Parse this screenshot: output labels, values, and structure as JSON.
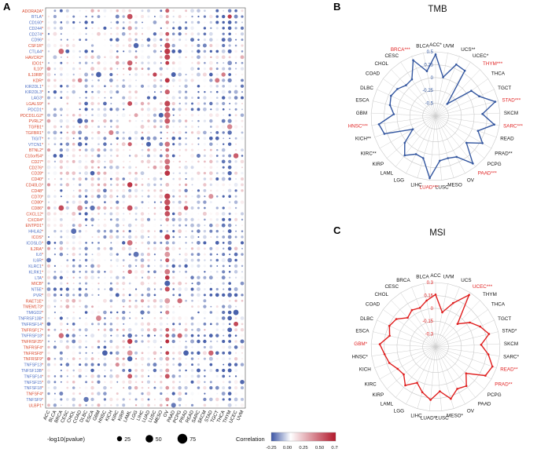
{
  "panels": {
    "a": {
      "label": "A"
    },
    "b": {
      "label": "B"
    },
    "c": {
      "label": "C"
    }
  },
  "colors": {
    "gene_label_red": "#d9472b",
    "gene_label_blue": "#4d6fc4",
    "tmb_line_blue": "#3457a0",
    "msi_line_red": "#e01f1f",
    "corr_scale_low": "#3a54a4",
    "corr_scale_mid": "#ffffff",
    "corr_scale_high": "#b2182b"
  },
  "chart_data": [
    {
      "type": "heatmap",
      "subtype": "bubble-matrix",
      "panel": "A",
      "genes_format": [
        "gene_name",
        "label_color"
      ],
      "genes": [
        [
          "ADORA2A",
          "red"
        ],
        [
          "BTLA",
          "blue"
        ],
        [
          "CD160",
          "blue"
        ],
        [
          "CD244",
          "blue"
        ],
        [
          "CD274",
          "blue"
        ],
        [
          "CD96",
          "blue"
        ],
        [
          "CSF1R",
          "red"
        ],
        [
          "CTLA4",
          "blue"
        ],
        [
          "HAVCR2",
          "red"
        ],
        [
          "IDO1",
          "red"
        ],
        [
          "IL10",
          "red"
        ],
        [
          "IL10RB",
          "red"
        ],
        [
          "KDR",
          "red"
        ],
        [
          "KIR2DL1",
          "blue"
        ],
        [
          "KIR2DL3",
          "blue"
        ],
        [
          "LAG3",
          "blue"
        ],
        [
          "LGALS9",
          "red"
        ],
        [
          "PDCD1",
          "blue"
        ],
        [
          "PDCD1LG2",
          "red"
        ],
        [
          "PVRL2",
          "red"
        ],
        [
          "TGFB1",
          "red"
        ],
        [
          "TGFBR1",
          "red"
        ],
        [
          "TIGIT",
          "blue"
        ],
        [
          "VTCN1",
          "blue"
        ],
        [
          "BTNL2",
          "red"
        ],
        [
          "C10orf54",
          "red"
        ],
        [
          "CD27",
          "red"
        ],
        [
          "CD276",
          "red"
        ],
        [
          "CD28",
          "red"
        ],
        [
          "CD40",
          "red"
        ],
        [
          "CD40LG",
          "red"
        ],
        [
          "CD48",
          "red"
        ],
        [
          "CD70",
          "red"
        ],
        [
          "CD80",
          "red"
        ],
        [
          "CD86",
          "red"
        ],
        [
          "CXCL12",
          "red"
        ],
        [
          "CXCR4",
          "red"
        ],
        [
          "ENTPD1",
          "red"
        ],
        [
          "HHLA2",
          "blue"
        ],
        [
          "ICOS",
          "red"
        ],
        [
          "ICOSLG",
          "blue"
        ],
        [
          "IL2RA",
          "red"
        ],
        [
          "IL6",
          "blue"
        ],
        [
          "IL6R",
          "blue"
        ],
        [
          "KLRC1",
          "blue"
        ],
        [
          "KLRK1",
          "blue"
        ],
        [
          "LTA",
          "blue"
        ],
        [
          "MICB",
          "red"
        ],
        [
          "NT5E",
          "blue"
        ],
        [
          "PVR",
          "blue"
        ],
        [
          "RAET1E",
          "red"
        ],
        [
          "TMEM173",
          "red"
        ],
        [
          "TMIGD2",
          "blue"
        ],
        [
          "TNFRSF13B",
          "blue"
        ],
        [
          "TNFRSF14",
          "blue"
        ],
        [
          "TNFRSF17",
          "red"
        ],
        [
          "TNFRSF18",
          "blue"
        ],
        [
          "TNFRSF25",
          "red"
        ],
        [
          "TNFRSF4",
          "red"
        ],
        [
          "TNFRSF8",
          "red"
        ],
        [
          "TNFRSF9",
          "red"
        ],
        [
          "TNFSF13",
          "blue"
        ],
        [
          "TNFSF13B",
          "blue"
        ],
        [
          "TNFSF14",
          "blue"
        ],
        [
          "TNFSF15",
          "blue"
        ],
        [
          "TNFSF18",
          "blue"
        ],
        [
          "TNFSF4",
          "red"
        ],
        [
          "TNFSF9",
          "blue"
        ],
        [
          "ULBP1",
          "red"
        ]
      ],
      "cancers": [
        "ACC",
        "BLCA",
        "BRCA",
        "CESC",
        "CHOL",
        "COAD",
        "DLBC",
        "ESCA",
        "GBM",
        "HNSC",
        "KICH",
        "KIRC",
        "KIRP",
        "LAML",
        "LGG",
        "LIHC",
        "LUAD",
        "LUSC",
        "MESO",
        "OV",
        "PAAD",
        "PCPG",
        "PRAD",
        "READ",
        "SARC",
        "SKCM",
        "STAD",
        "TGCT",
        "THCA",
        "THYM",
        "UCEC",
        "UVM"
      ],
      "legend": {
        "size_title": "-log10(pvalue)",
        "size_values": [
          "25",
          "50",
          "75"
        ],
        "color_title": "Correlation",
        "color_ticks": [
          "-0.25",
          "0.00",
          "0.25",
          "0.50",
          "0.75"
        ]
      }
    },
    {
      "type": "radar",
      "panel": "B",
      "title": "TMB",
      "categories": [
        "ACC*",
        "UVM",
        "UCS**",
        "UCEC*",
        "THYM***",
        "THCA",
        "TGCT",
        "STAD***",
        "SKCM",
        "SARC***",
        "READ",
        "PRAD**",
        "PCPG",
        "PAAD***",
        "OV",
        "MESO",
        "LUSC",
        "LUAD***",
        "LIHC",
        "LGG",
        "LAML",
        "KIRP",
        "KIRC**",
        "KICH**",
        "HNSC***",
        "GBM",
        "ESCA",
        "DLBC",
        "COAD",
        "CHOL",
        "CESC",
        "BRCA***",
        "BLCA"
      ],
      "values": [
        0.45,
        0.02,
        0.33,
        0.3,
        -0.42,
        0.1,
        0.18,
        0.44,
        0.16,
        0.4,
        0.12,
        0.3,
        0.04,
        0.42,
        0.14,
        0.1,
        0.12,
        0.46,
        0.1,
        0.08,
        0.22,
        0.04,
        -0.24,
        0.3,
        0.36,
        0.06,
        0.16,
        0.2,
        0.16,
        0.08,
        0.1,
        0.42,
        0.14
      ],
      "red_categories": [
        "THYM***",
        "STAD***",
        "SARC***",
        "PAAD***",
        "LUAD***",
        "HNSC***",
        "BRCA***"
      ],
      "axis_ticks": [
        "0.5",
        "0.25",
        "0",
        "-0.25",
        "-0.5"
      ],
      "ylim": [
        -0.5,
        0.5
      ],
      "grid": true,
      "line_color": "#3457a0",
      "red_label_color": "#e01f1f"
    },
    {
      "type": "radar",
      "panel": "C",
      "title": "MSI",
      "categories": [
        "ACC",
        "UVM",
        "UCS",
        "UCEC***",
        "THYM",
        "THCA",
        "TGCT",
        "STAD*",
        "SKCM",
        "SARC*",
        "READ**",
        "PRAD**",
        "PCPG",
        "PAAD",
        "OV",
        "MESO*",
        "LUSC",
        "LUAD**",
        "LIHC",
        "LGG",
        "LAML",
        "KIRP",
        "KIRC",
        "KICH",
        "HNSC*",
        "GBM*",
        "ESCA",
        "DLBC",
        "COAD",
        "CHOL",
        "CESC",
        "BRCA",
        "BLCA"
      ],
      "values": [
        0.16,
        -0.04,
        0.1,
        0.27,
        -0.08,
        0.04,
        0.12,
        0.19,
        0.08,
        0.17,
        0.25,
        0.22,
        0.02,
        0.13,
        0.1,
        0.18,
        0.07,
        0.17,
        0.1,
        0.02,
        0.12,
        0.04,
        0.06,
        0.12,
        0.15,
        0.2,
        0.1,
        0.14,
        0.11,
        0.02,
        0.06,
        0.04,
        0.1
      ],
      "red_categories": [
        "UCEC***",
        "READ**",
        "PRAD**",
        "GBM*"
      ],
      "axis_ticks": [
        "0.3",
        "0.15",
        "0",
        "-0.15",
        "-0.3"
      ],
      "ylim": [
        -0.3,
        0.3
      ],
      "grid": true,
      "line_color": "#e01f1f",
      "red_label_color": "#e01f1f"
    }
  ]
}
